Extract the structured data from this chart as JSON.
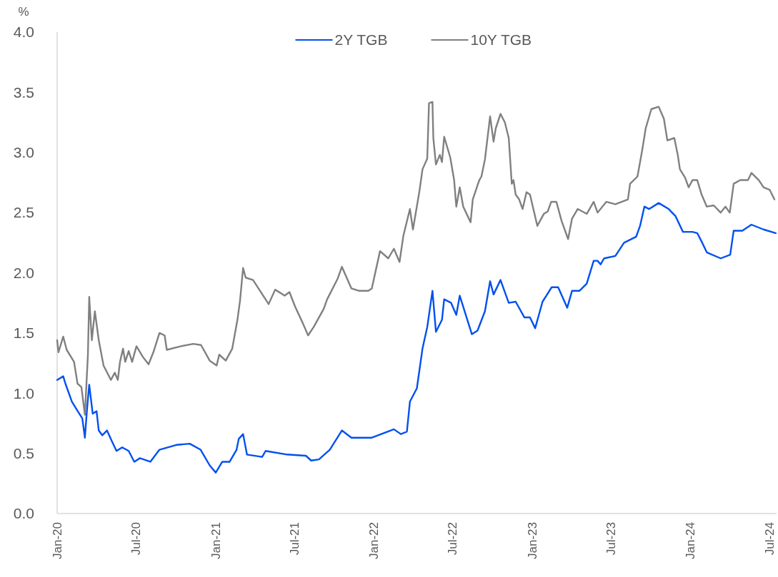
{
  "chart_data": {
    "type": "line",
    "ylabel": "%",
    "legend": "top",
    "grid": false,
    "marker": "none",
    "line_style": "solid",
    "xlim": [
      "2020-01-01",
      "2024-07-18"
    ],
    "xticks": [
      {
        "value": "2020-01-01",
        "label": "Jan-20"
      },
      {
        "value": "2020-07-01",
        "label": "Jul-20"
      },
      {
        "value": "2021-01-01",
        "label": "Jan-21"
      },
      {
        "value": "2021-07-01",
        "label": "Jul-21"
      },
      {
        "value": "2022-01-01",
        "label": "Jan-22"
      },
      {
        "value": "2022-07-01",
        "label": "Jul-22"
      },
      {
        "value": "2023-01-01",
        "label": "Jan-23"
      },
      {
        "value": "2023-07-01",
        "label": "Jul-23"
      },
      {
        "value": "2024-01-01",
        "label": "Jan-24"
      },
      {
        "value": "2024-07-01",
        "label": "Jul-24"
      }
    ],
    "ylim": [
      0,
      4
    ],
    "yticks": [
      {
        "value": 0,
        "label": "0.0"
      },
      {
        "value": 0.5,
        "label": "0.5"
      },
      {
        "value": 1,
        "label": "1.0"
      },
      {
        "value": 1.5,
        "label": "1.5"
      },
      {
        "value": 2,
        "label": "2.0"
      },
      {
        "value": 2.5,
        "label": "2.5"
      },
      {
        "value": 3,
        "label": "3.0"
      },
      {
        "value": 3.5,
        "label": "3.5"
      },
      {
        "value": 4,
        "label": "4.0"
      }
    ],
    "series": [
      {
        "name": "2Y TGB",
        "color": "#0050f0",
        "x": [
          "2020-01-01",
          "2020-01-15",
          "2020-01-20",
          "2020-02-04",
          "2020-02-14",
          "2020-02-28",
          "2020-03-05",
          "2020-03-10",
          "2020-03-15",
          "2020-03-23",
          "2020-04-01",
          "2020-04-06",
          "2020-04-14",
          "2020-04-25",
          "2020-05-05",
          "2020-05-17",
          "2020-05-30",
          "2020-06-14",
          "2020-06-27",
          "2020-07-10",
          "2020-08-03",
          "2020-08-24",
          "2020-10-02",
          "2020-11-02",
          "2020-11-27",
          "2020-12-18",
          "2021-01-01",
          "2021-01-16",
          "2021-02-02",
          "2021-02-18",
          "2021-02-23",
          "2021-03-05",
          "2021-03-14",
          "2021-04-18",
          "2021-04-26",
          "2021-06-15",
          "2021-07-28",
          "2021-08-09",
          "2021-08-27",
          "2021-09-21",
          "2021-10-19",
          "2021-11-10",
          "2021-12-27",
          "2022-02-16",
          "2022-03-04",
          "2022-03-18",
          "2022-03-25",
          "2022-04-10",
          "2022-04-23",
          "2022-05-04",
          "2022-05-16",
          "2022-05-24",
          "2022-06-07",
          "2022-06-12",
          "2022-06-28",
          "2022-07-10",
          "2022-07-18",
          "2022-08-07",
          "2022-08-15",
          "2022-08-28",
          "2022-09-14",
          "2022-09-26",
          "2022-10-04",
          "2022-10-20",
          "2022-11-08",
          "2022-11-24",
          "2022-12-14",
          "2022-12-27",
          "2023-01-08",
          "2023-01-25",
          "2023-02-15",
          "2023-03-02",
          "2023-03-23",
          "2023-04-03",
          "2023-04-20",
          "2023-05-07",
          "2023-05-23",
          "2023-06-01",
          "2023-06-08",
          "2023-06-16",
          "2023-07-12",
          "2023-08-01",
          "2023-08-29",
          "2023-09-07",
          "2023-09-17",
          "2023-09-28",
          "2023-10-20",
          "2023-11-12",
          "2023-11-28",
          "2023-12-15",
          "2024-01-06",
          "2024-01-17",
          "2024-01-27",
          "2024-02-08",
          "2024-03-11",
          "2024-04-02",
          "2024-04-10",
          "2024-04-30",
          "2024-05-21",
          "2024-06-18",
          "2024-07-16"
        ],
        "values": [
          1.11,
          1.14,
          1.08,
          0.93,
          0.87,
          0.79,
          0.63,
          0.87,
          1.07,
          0.83,
          0.85,
          0.69,
          0.65,
          0.69,
          0.61,
          0.52,
          0.55,
          0.52,
          0.43,
          0.46,
          0.43,
          0.53,
          0.57,
          0.58,
          0.53,
          0.4,
          0.34,
          0.43,
          0.43,
          0.53,
          0.62,
          0.66,
          0.49,
          0.47,
          0.52,
          0.49,
          0.48,
          0.44,
          0.45,
          0.53,
          0.69,
          0.63,
          0.63,
          0.7,
          0.66,
          0.68,
          0.93,
          1.04,
          1.37,
          1.55,
          1.85,
          1.51,
          1.61,
          1.78,
          1.75,
          1.65,
          1.81,
          1.58,
          1.49,
          1.52,
          1.68,
          1.93,
          1.82,
          1.94,
          1.75,
          1.76,
          1.63,
          1.63,
          1.54,
          1.76,
          1.88,
          1.88,
          1.71,
          1.85,
          1.85,
          1.91,
          2.1,
          2.1,
          2.07,
          2.12,
          2.14,
          2.25,
          2.3,
          2.39,
          2.55,
          2.53,
          2.58,
          2.53,
          2.47,
          2.34,
          2.34,
          2.33,
          2.26,
          2.17,
          2.12,
          2.15,
          2.35,
          2.35,
          2.4,
          2.36,
          2.33
        ]
      },
      {
        "name": "10Y TGB",
        "color": "#808080",
        "x": [
          "2020-01-01",
          "2020-01-04",
          "2020-01-15",
          "2020-01-23",
          "2020-02-09",
          "2020-02-17",
          "2020-02-26",
          "2020-03-05",
          "2020-03-12",
          "2020-03-15",
          "2020-03-21",
          "2020-03-28",
          "2020-04-06",
          "2020-04-17",
          "2020-05-04",
          "2020-05-13",
          "2020-05-20",
          "2020-05-25",
          "2020-06-01",
          "2020-06-06",
          "2020-06-14",
          "2020-06-22",
          "2020-07-02",
          "2020-07-17",
          "2020-07-30",
          "2020-08-11",
          "2020-08-24",
          "2020-09-05",
          "2020-09-10",
          "2020-10-13",
          "2020-11-10",
          "2020-11-28",
          "2020-12-18",
          "2021-01-03",
          "2021-01-09",
          "2021-01-24",
          "2021-02-08",
          "2021-02-20",
          "2021-02-26",
          "2021-03-05",
          "2021-03-11",
          "2021-03-28",
          "2021-05-03",
          "2021-05-18",
          "2021-06-09",
          "2021-06-20",
          "2021-07-03",
          "2021-07-21",
          "2021-08-02",
          "2021-08-15",
          "2021-09-07",
          "2021-09-15",
          "2021-10-09",
          "2021-10-19",
          "2021-11-10",
          "2021-11-28",
          "2021-12-19",
          "2021-12-27",
          "2022-01-15",
          "2022-02-03",
          "2022-02-16",
          "2022-03-01",
          "2022-03-10",
          "2022-03-25",
          "2022-04-01",
          "2022-04-16",
          "2022-04-23",
          "2022-05-04",
          "2022-05-08",
          "2022-05-16",
          "2022-05-18",
          "2022-05-24",
          "2022-06-02",
          "2022-06-07",
          "2022-06-12",
          "2022-06-26",
          "2022-07-05",
          "2022-07-10",
          "2022-07-18",
          "2022-07-26",
          "2022-08-12",
          "2022-08-17",
          "2022-09-01",
          "2022-09-06",
          "2022-09-14",
          "2022-09-26",
          "2022-10-04",
          "2022-10-09",
          "2022-10-20",
          "2022-10-30",
          "2022-11-08",
          "2022-11-15",
          "2022-11-19",
          "2022-11-24",
          "2022-12-02",
          "2022-12-10",
          "2022-12-19",
          "2022-12-27",
          "2023-01-13",
          "2023-01-28",
          "2023-02-06",
          "2023-02-14",
          "2023-02-26",
          "2023-03-10",
          "2023-03-25",
          "2023-04-03",
          "2023-04-16",
          "2023-05-07",
          "2023-05-23",
          "2023-06-01",
          "2023-06-21",
          "2023-07-12",
          "2023-08-10",
          "2023-08-15",
          "2023-09-01",
          "2023-09-12",
          "2023-09-20",
          "2023-10-03",
          "2023-10-20",
          "2023-11-01",
          "2023-11-09",
          "2023-11-25",
          "2023-12-03",
          "2023-12-08",
          "2023-12-20",
          "2023-12-28",
          "2024-01-06",
          "2024-01-17",
          "2024-01-27",
          "2024-02-08",
          "2024-02-24",
          "2024-03-11",
          "2024-03-22",
          "2024-04-01",
          "2024-04-10",
          "2024-04-25",
          "2024-05-13",
          "2024-05-21",
          "2024-06-07",
          "2024-06-18",
          "2024-07-02",
          "2024-07-13"
        ],
        "values": [
          1.44,
          1.34,
          1.47,
          1.36,
          1.26,
          1.08,
          1.05,
          0.82,
          1.32,
          1.8,
          1.44,
          1.68,
          1.44,
          1.23,
          1.11,
          1.17,
          1.11,
          1.26,
          1.37,
          1.26,
          1.35,
          1.26,
          1.39,
          1.3,
          1.24,
          1.35,
          1.5,
          1.48,
          1.36,
          1.39,
          1.41,
          1.4,
          1.27,
          1.23,
          1.32,
          1.27,
          1.37,
          1.61,
          1.77,
          2.04,
          1.96,
          1.94,
          1.74,
          1.86,
          1.81,
          1.84,
          1.72,
          1.58,
          1.48,
          1.55,
          1.7,
          1.78,
          1.95,
          2.05,
          1.87,
          1.85,
          1.85,
          1.87,
          2.18,
          2.12,
          2.2,
          2.09,
          2.31,
          2.53,
          2.36,
          2.68,
          2.86,
          2.95,
          3.41,
          3.42,
          3.12,
          2.9,
          2.98,
          2.92,
          3.13,
          2.96,
          2.77,
          2.55,
          2.71,
          2.55,
          2.42,
          2.61,
          2.77,
          2.8,
          2.94,
          3.3,
          3.09,
          3.2,
          3.32,
          3.25,
          3.12,
          2.74,
          2.77,
          2.65,
          2.61,
          2.53,
          2.67,
          2.65,
          2.39,
          2.49,
          2.51,
          2.59,
          2.59,
          2.43,
          2.28,
          2.45,
          2.53,
          2.49,
          2.59,
          2.5,
          2.59,
          2.57,
          2.61,
          2.74,
          2.8,
          3.02,
          3.2,
          3.36,
          3.38,
          3.28,
          3.1,
          3.12,
          2.98,
          2.86,
          2.79,
          2.71,
          2.77,
          2.77,
          2.65,
          2.55,
          2.56,
          2.5,
          2.55,
          2.5,
          2.74,
          2.77,
          2.77,
          2.83,
          2.77,
          2.71,
          2.69,
          2.61
        ]
      }
    ]
  }
}
